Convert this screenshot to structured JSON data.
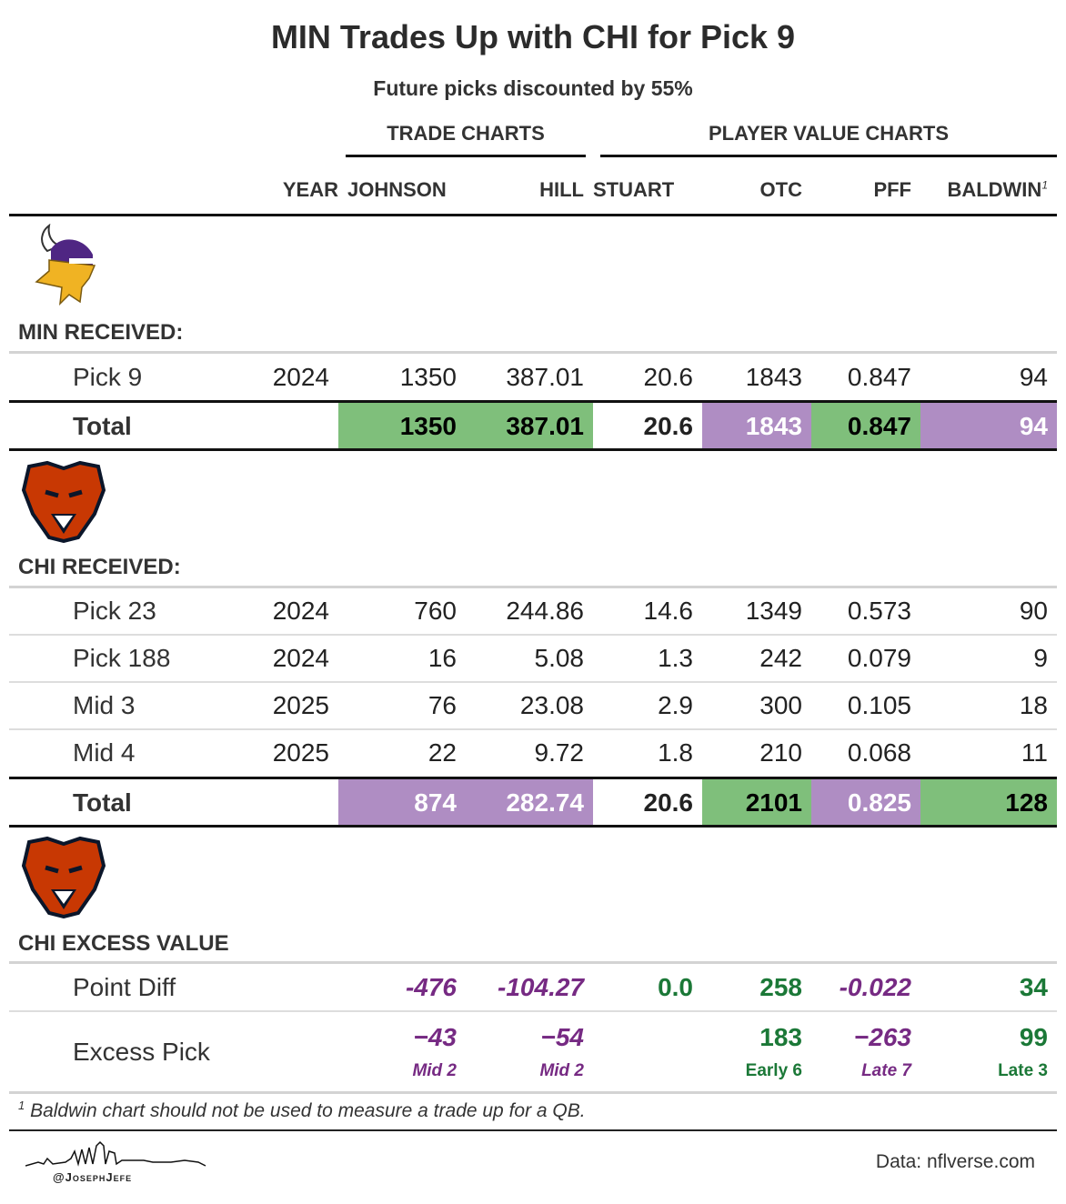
{
  "title": "MIN Trades Up with CHI for Pick 9",
  "subtitle": "Future picks discounted by 55%",
  "groups": {
    "trade": "TRADE CHARTS",
    "player": "PLAYER VALUE CHARTS"
  },
  "columns": [
    "YEAR",
    "JOHNSON",
    "HILL",
    "STUART",
    "OTC",
    "PFF",
    "BALDWIN"
  ],
  "footnote_mark": "1",
  "colors": {
    "green": "#7fbf7b",
    "purple": "#af8dc3",
    "dark_green": "#1b7837",
    "dark_purple": "#762a83"
  },
  "chart_data": {
    "type": "table",
    "min_received": {
      "label": "MIN RECEIVED:",
      "rows": [
        [
          "Pick 9",
          "2024",
          "1350",
          "387.01",
          "20.6",
          "1843",
          "0.847",
          "94"
        ]
      ],
      "total": [
        "Total",
        "",
        "1350",
        "387.01",
        "20.6",
        "1843",
        "0.847",
        "94"
      ],
      "total_colors": [
        "",
        "",
        "green",
        "green",
        "",
        "purple",
        "green",
        "purple"
      ]
    },
    "chi_received": {
      "label": "CHI RECEIVED:",
      "rows": [
        [
          "Pick 23",
          "2024",
          "760",
          "244.86",
          "14.6",
          "1349",
          "0.573",
          "90"
        ],
        [
          "Pick 188",
          "2024",
          "16",
          "5.08",
          "1.3",
          "242",
          "0.079",
          "9"
        ],
        [
          "Mid 3",
          "2025",
          "76",
          "23.08",
          "2.9",
          "300",
          "0.105",
          "18"
        ],
        [
          "Mid 4",
          "2025",
          "22",
          "9.72",
          "1.8",
          "210",
          "0.068",
          "11"
        ]
      ],
      "total": [
        "Total",
        "",
        "874",
        "282.74",
        "20.6",
        "2101",
        "0.825",
        "128"
      ],
      "total_colors": [
        "",
        "",
        "purple",
        "purple",
        "",
        "green",
        "purple",
        "green"
      ]
    },
    "chi_excess": {
      "label": "CHI EXCESS VALUE",
      "point_diff": [
        "Point Diff",
        "",
        "-476",
        "-104.27",
        "0.0",
        "258",
        "-0.022",
        "34"
      ],
      "point_diff_colors": [
        "",
        "",
        "dark_purple",
        "dark_purple",
        "dark_green",
        "dark_green",
        "dark_purple",
        "dark_green"
      ],
      "excess_pick": [
        "Excess Pick",
        "",
        "−43",
        "−54",
        "",
        "183",
        "−263",
        "99"
      ],
      "excess_round": [
        "",
        "",
        "Mid 2",
        "Mid 2",
        "",
        "Early 6",
        "Late 7",
        "Late 3"
      ],
      "excess_colors": [
        "",
        "",
        "dark_purple",
        "dark_purple",
        "",
        "dark_green",
        "dark_purple",
        "dark_green"
      ]
    }
  },
  "footnote": "Baldwin chart should not be used to measure a trade up for a QB.",
  "credit": "@JosephJefe",
  "source": "Data: nflverse.com"
}
